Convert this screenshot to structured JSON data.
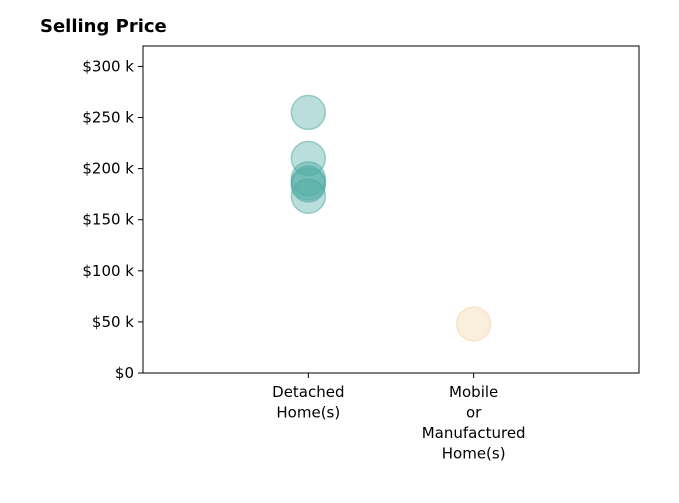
{
  "chart_data": {
    "type": "scatter",
    "title": "Selling Price",
    "xlabel": "",
    "ylabel": "",
    "ylim": [
      0,
      320000
    ],
    "y_ticks": [
      {
        "value": 0,
        "label": "$0"
      },
      {
        "value": 50000,
        "label": "$50 k"
      },
      {
        "value": 100000,
        "label": "$100 k"
      },
      {
        "value": 150000,
        "label": "$150 k"
      },
      {
        "value": 200000,
        "label": "$200 k"
      },
      {
        "value": 250000,
        "label": "$250 k"
      },
      {
        "value": 300000,
        "label": "$300 k"
      }
    ],
    "categories": [
      {
        "label_lines": [
          "Detached",
          "Home(s)"
        ],
        "color": "#4aa8a0"
      },
      {
        "label_lines": [
          "Mobile",
          "or",
          "Manufactured",
          "Home(s)"
        ],
        "color": "#f2d6a2"
      }
    ],
    "series": [
      {
        "category": 0,
        "values": [
          255000,
          210000,
          190000,
          186000,
          184000,
          173000
        ]
      },
      {
        "category": 1,
        "values": [
          48000
        ]
      }
    ],
    "grid": false,
    "legend": "none"
  }
}
